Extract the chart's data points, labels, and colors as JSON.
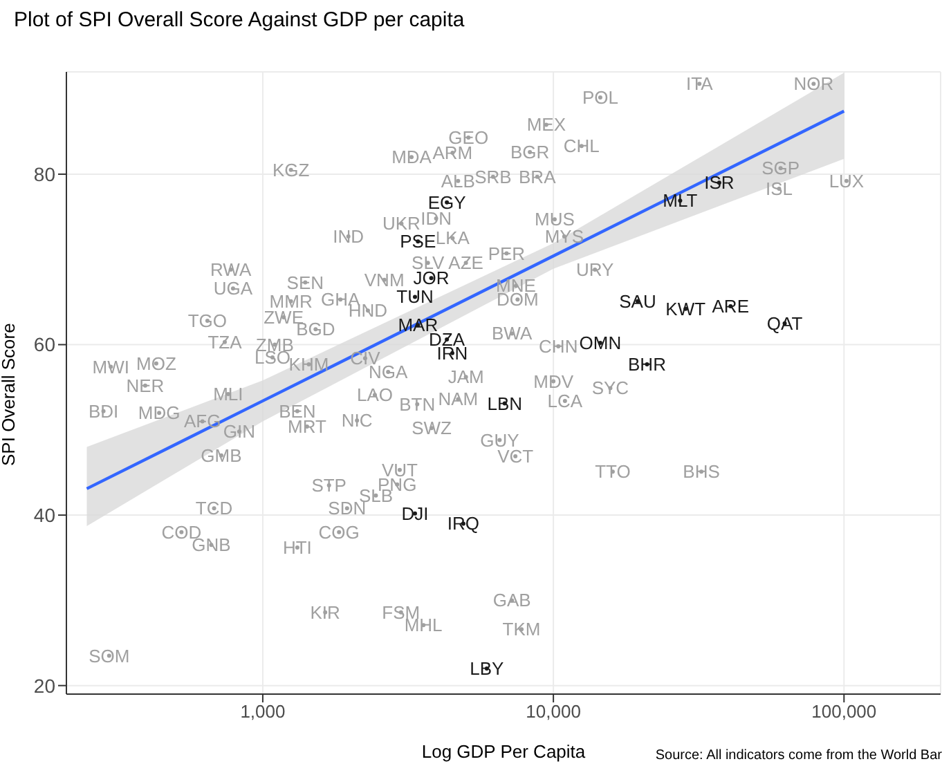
{
  "chart_data": {
    "type": "scatter",
    "title": "Plot of SPI Overall Score Against GDP per capita",
    "xlabel": "Log GDP Per Capita",
    "ylabel": "SPI Overall Score",
    "annotations": [
      "Source: All indicators come from the World Bar"
    ],
    "log": "x",
    "xlim": [
      211,
      215000
    ],
    "xticks": [
      {
        "value": 1000,
        "label": "1,000"
      },
      {
        "value": 10000,
        "label": "10,000"
      },
      {
        "value": 100000,
        "label": "100,000"
      }
    ],
    "ylim": [
      19,
      92
    ],
    "yticks": [
      20,
      40,
      60,
      80
    ],
    "grid": true,
    "legend": false,
    "series": [
      {
        "color": "#a0a0a0",
        "x": [
          1250,
          3250,
          4500,
          5100,
          1970,
          3000,
          3950,
          4500,
          3700,
          5000,
          6900,
          776,
          790,
          1400,
          2620,
          1250,
          1850,
          2300,
          645,
          1180,
          1520,
          740,
          1100,
          1080,
          1440,
          2250,
          2700,
          300,
          430,
          394,
          760,
          283,
          440,
          620,
          1315,
          1420,
          2110,
          2430,
          3400,
          3810,
          4700,
          5000,
          830,
          720,
          680,
          525,
          665,
          1315,
          1830,
          1690,
          2450,
          1950,
          2900,
          2960,
          6530,
          7400,
          16000,
          32300,
          1640,
          2990,
          3570,
          7200,
          7770,
          296,
          10000,
          10960,
          15700,
          10400,
          7200,
          7530,
          7430,
          13900,
          10100,
          10900,
          8300,
          12500,
          9450,
          14500,
          31800,
          78600,
          60500,
          59800,
          102000,
          8800,
          6200,
          4700
        ],
        "values": [
          80.5,
          82,
          82.5,
          84.3,
          72.7,
          74.2,
          74.8,
          72.5,
          69.6,
          69.6,
          70.7,
          68.8,
          66.6,
          67.3,
          67.6,
          65.1,
          65.3,
          64,
          62.8,
          63.2,
          61.8,
          60.3,
          60,
          58.5,
          57.7,
          58.4,
          56.8,
          57.4,
          57.8,
          55.2,
          54.2,
          52.2,
          52,
          51,
          52.2,
          50.4,
          51.1,
          54.1,
          53,
          50.2,
          53.6,
          56.2,
          49.8,
          47,
          40.8,
          38,
          36.5,
          36.2,
          38,
          43.5,
          42.3,
          40.8,
          43.6,
          45.3,
          48.8,
          46.9,
          45.1,
          45.1,
          28.6,
          28.6,
          27.1,
          30,
          26.6,
          23.5,
          55.7,
          53.4,
          54.9,
          59.8,
          61.3,
          65.3,
          66.9,
          68.8,
          74.7,
          72.7,
          82.6,
          83.3,
          85.8,
          89,
          90.6,
          90.6,
          80.7,
          78.3,
          79.2,
          79.7,
          79.7,
          79.2
        ],
        "value_labels": [
          "KGZ",
          "MDA",
          "ARM",
          "GEO",
          "IND",
          "UKR",
          "IDN",
          "LKA",
          "SLV",
          "AZE",
          "PER",
          "RWA",
          "UGA",
          "SEN",
          "VNM",
          "MMR",
          "GHA",
          "HND",
          "TGO",
          "ZWE",
          "BGD",
          "TZA",
          "ZMB",
          "LSO",
          "KHM",
          "CIV",
          "NGA",
          "MWI",
          "MOZ",
          "NER",
          "MLI",
          "BDI",
          "MDG",
          "AFG",
          "BEN",
          "MRT",
          "NIC",
          "LAO",
          "BTN",
          "SWZ",
          "NAM",
          "JAM",
          "GIN",
          "GMB",
          "TCD",
          "COD",
          "GNB",
          "HTI",
          "COG",
          "STP",
          "SLB",
          "SDN",
          "PNG",
          "VUT",
          "GUY",
          "VCT",
          "TTO",
          "BHS",
          "KIR",
          "FSM",
          "MHL",
          "GAB",
          "TKM",
          "SOM",
          "MDV",
          "LCA",
          "SYC",
          "CHN",
          "BWA",
          "DOM",
          "MNE",
          "URY",
          "MUS",
          "MYS",
          "BGR",
          "CHL",
          "MEX",
          "POL",
          "ITA",
          "NOR",
          "SGP",
          "ISL",
          "LUX",
          "BRA",
          "SRB",
          "ALB"
        ]
      },
      {
        "color": "#1a1a1a",
        "x": [
          4300,
          3420,
          3800,
          3340,
          3420,
          4300,
          4490,
          6800,
          27300,
          37200,
          19500,
          28500,
          40700,
          62500,
          14500,
          21000,
          3340,
          4900,
          5900
        ],
        "values": [
          76.7,
          72.1,
          67.8,
          65.6,
          62.3,
          60.6,
          59,
          53.1,
          76.9,
          79,
          65.1,
          64.2,
          64.5,
          62.5,
          60.2,
          57.7,
          40.2,
          39,
          22
        ],
        "value_labels": [
          "EGY",
          "PSE",
          "JOR",
          "TUN",
          "MAR",
          "DZA",
          "IRN",
          "LBN",
          "MLT",
          "ISR",
          "SAU",
          "KWT",
          "ARE",
          "QAT",
          "OMN",
          "BHR",
          "DJI",
          "IRQ",
          "LBY"
        ]
      },
      {
        "type": "line",
        "color": "#3366ff",
        "x": [
          248,
          1000,
          10000,
          100000
        ],
        "values": [
          43.1,
          53.4,
          70.4,
          87.4
        ],
        "lower": [
          38.7,
          51,
          68.9,
          81.8
        ],
        "upper": [
          48,
          55.8,
          71.9,
          91.9
        ]
      }
    ]
  }
}
